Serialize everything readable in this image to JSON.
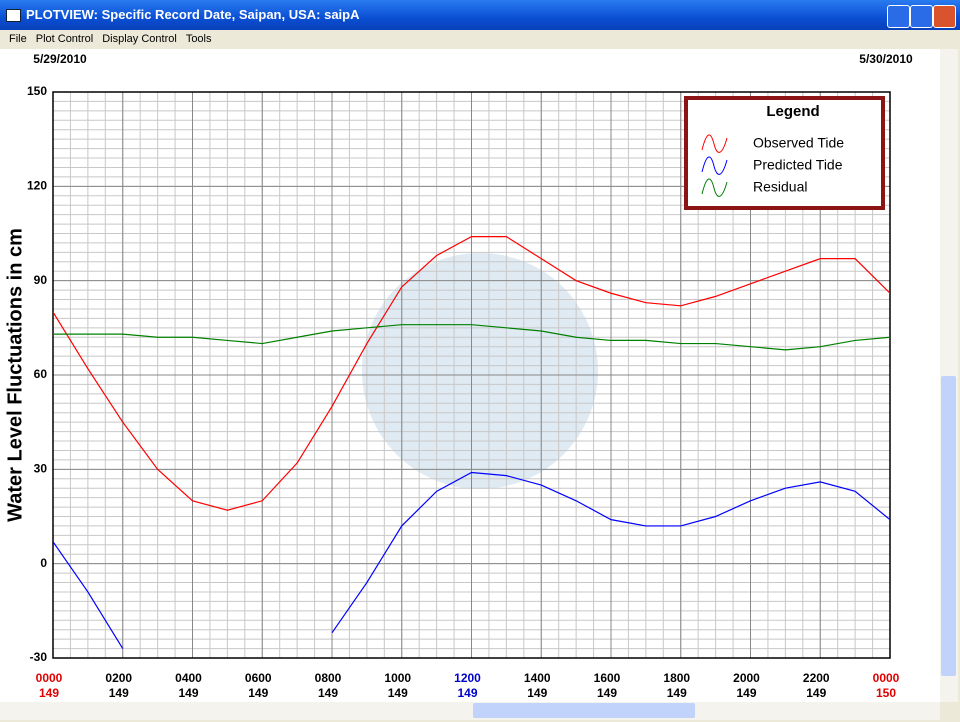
{
  "window": {
    "title": "PLOTVIEW: Specific Record Date, Saipan, USA: saipA",
    "menu": [
      "File",
      "Plot Control",
      "Display Control",
      "Tools"
    ]
  },
  "chart_data": {
    "type": "line",
    "date_left": "5/29/2010",
    "date_right": "5/30/2010",
    "ylabel": "Water Level Fluctuations in cm",
    "legend_title": "Legend",
    "legend": "upper right",
    "x": [
      0,
      1,
      2,
      3,
      4,
      5,
      6,
      7,
      8,
      9,
      10,
      11,
      12,
      13,
      14,
      15,
      16,
      17,
      18,
      19,
      20,
      21,
      22,
      23,
      24
    ],
    "series": [
      {
        "name": "Observed Tide",
        "color": "#ff0000",
        "values": [
          80,
          62,
          45,
          30,
          20,
          17,
          20,
          32,
          50,
          70,
          88,
          98,
          104,
          104,
          97,
          90,
          86,
          83,
          82,
          85,
          89,
          93,
          97,
          97,
          86
        ]
      },
      {
        "name": "Predicted Tide",
        "color": "#0000ff",
        "values": [
          7,
          -9,
          -27,
          null,
          null,
          null,
          null,
          null,
          -22,
          -6,
          12,
          23,
          29,
          28,
          25,
          20,
          14,
          12,
          12,
          15,
          20,
          24,
          26,
          23,
          14
        ]
      },
      {
        "name": "Residual",
        "color": "#008000",
        "values": [
          73,
          73,
          73,
          72,
          72,
          71,
          70,
          72,
          74,
          75,
          76,
          76,
          76,
          75,
          74,
          72,
          71,
          71,
          70,
          70,
          69,
          68,
          69,
          71,
          72
        ]
      }
    ],
    "xlim": [
      0,
      24
    ],
    "ylim": [
      -30,
      150
    ],
    "yticks": [
      -30,
      0,
      30,
      60,
      90,
      120,
      150
    ],
    "xticks": [
      {
        "value": 0,
        "label": "0000",
        "day": "149",
        "color": "#e00000"
      },
      {
        "value": 2,
        "label": "0200",
        "day": "149",
        "color": "#000000"
      },
      {
        "value": 4,
        "label": "0400",
        "day": "149",
        "color": "#000000"
      },
      {
        "value": 6,
        "label": "0600",
        "day": "149",
        "color": "#000000"
      },
      {
        "value": 8,
        "label": "0800",
        "day": "149",
        "color": "#000000"
      },
      {
        "value": 10,
        "label": "1000",
        "day": "149",
        "color": "#000000"
      },
      {
        "value": 12,
        "label": "1200",
        "day": "149",
        "color": "#0000cc"
      },
      {
        "value": 14,
        "label": "1400",
        "day": "149",
        "color": "#000000"
      },
      {
        "value": 16,
        "label": "1600",
        "day": "149",
        "color": "#000000"
      },
      {
        "value": 18,
        "label": "1800",
        "day": "149",
        "color": "#000000"
      },
      {
        "value": 20,
        "label": "2000",
        "day": "149",
        "color": "#000000"
      },
      {
        "value": 22,
        "label": "2200",
        "day": "149",
        "color": "#000000"
      },
      {
        "value": 24,
        "label": "0000",
        "day": "150",
        "color": "#e00000"
      }
    ],
    "grid": true,
    "y_minor_step": 3,
    "x_minor_step": 0.5
  }
}
